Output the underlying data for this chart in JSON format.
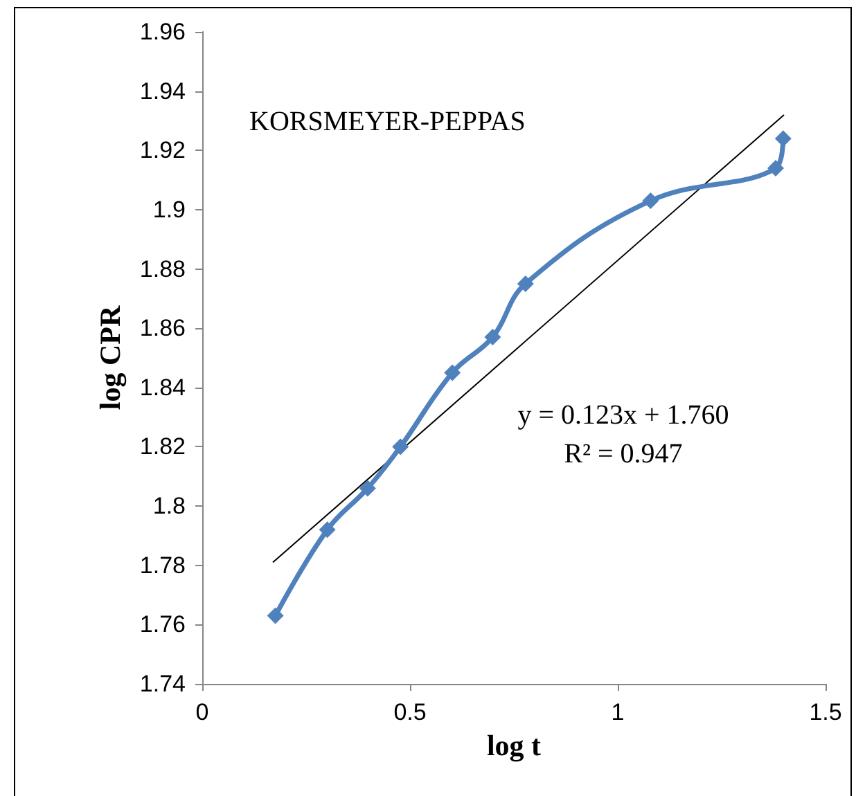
{
  "chart_data": {
    "type": "line",
    "xlabel": "log t",
    "ylabel": "log CPR",
    "annotations": [
      "KORSMEYER-PEPPAS",
      "y = 0.123x + 1.760",
      "R² = 0.947"
    ],
    "series": [
      {
        "color": "#4f81bd",
        "marker": "diamond",
        "x": [
          0.176,
          0.301,
          0.398,
          0.477,
          0.602,
          0.699,
          0.778,
          1.079,
          1.38,
          1.398
        ],
        "values": [
          1.763,
          1.792,
          1.806,
          1.82,
          1.845,
          1.857,
          1.875,
          1.903,
          1.914,
          1.924
        ]
      },
      {
        "type": "line",
        "color": "#000000",
        "marker": "none",
        "x": [
          0.17,
          1.4
        ],
        "values": [
          1.781,
          1.932
        ]
      }
    ],
    "xlim": [
      0,
      1.5
    ],
    "xticks": [
      0,
      0.5,
      1,
      1.5
    ],
    "ylim": [
      1.74,
      1.96
    ],
    "yticks": [
      1.74,
      1.76,
      1.78,
      1.8,
      1.82,
      1.84,
      1.86,
      1.88,
      1.9,
      1.92,
      1.94,
      1.96
    ],
    "grid": false
  }
}
